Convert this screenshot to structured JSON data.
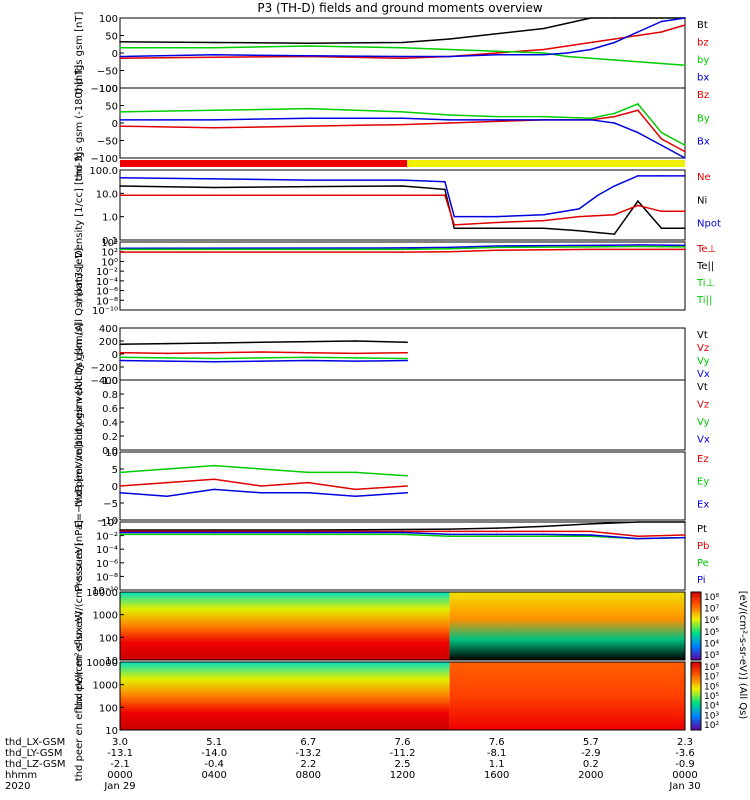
{
  "title": "P3 (TH-D) fields and ground moments overview",
  "colors": {
    "black": "#000000",
    "red": "#e00000",
    "green": "#00cc00",
    "blue": "#0000e0",
    "yellow": "#f0f000",
    "red_bar": "#ee0000"
  },
  "chart_data": [
    {
      "type": "line",
      "ylabel": "thd fgs gsm [nT]",
      "ylim": [
        -100,
        100
      ],
      "yticks": [
        "100",
        "50",
        "0",
        "−50",
        "−100"
      ],
      "legend": [
        {
          "label": "Bt",
          "color": "#000000"
        },
        {
          "label": "bz",
          "color": "#e00000"
        },
        {
          "label": "by",
          "color": "#00cc00"
        },
        {
          "label": "bx",
          "color": "#0000e0"
        }
      ],
      "x_hours": [
        0,
        4,
        8,
        12,
        14,
        16,
        18,
        19,
        20,
        21,
        22,
        23,
        24
      ],
      "series": [
        {
          "name": "Bt",
          "color": "#000000",
          "values": [
            32,
            30,
            28,
            30,
            40,
            55,
            70,
            85,
            100,
            100,
            100,
            100,
            100
          ]
        },
        {
          "name": "bz",
          "color": "#e00000",
          "values": [
            -15,
            -12,
            -10,
            -15,
            -10,
            0,
            10,
            20,
            30,
            40,
            50,
            60,
            80
          ]
        },
        {
          "name": "by",
          "color": "#00cc00",
          "values": [
            15,
            15,
            20,
            15,
            10,
            5,
            0,
            -10,
            -15,
            -20,
            -25,
            -30,
            -35
          ]
        },
        {
          "name": "bx",
          "color": "#0000e0",
          "values": [
            -10,
            -5,
            -8,
            -10,
            -10,
            -5,
            -5,
            0,
            10,
            30,
            60,
            90,
            100
          ]
        }
      ]
    },
    {
      "type": "line",
      "ylabel": "thd fgs gsm (-180) [nT]",
      "ylim": [
        -120,
        100
      ],
      "yticks": [
        "100",
        "50",
        "0",
        "−50",
        "−100"
      ],
      "legend": [
        {
          "label": "Bz",
          "color": "#e00000"
        },
        {
          "label": "By",
          "color": "#00cc00"
        },
        {
          "label": "Bx",
          "color": "#0000e0"
        }
      ],
      "x_hours": [
        0,
        4,
        8,
        12,
        14,
        16,
        18,
        20,
        21,
        22,
        23,
        24
      ],
      "series": [
        {
          "name": "Bz",
          "color": "#e00000",
          "values": [
            -20,
            -25,
            -20,
            -15,
            -10,
            -5,
            0,
            0,
            10,
            30,
            -60,
            -100
          ]
        },
        {
          "name": "By",
          "color": "#00cc00",
          "values": [
            25,
            30,
            35,
            25,
            15,
            10,
            10,
            5,
            20,
            50,
            -40,
            -80
          ]
        },
        {
          "name": "Bx",
          "color": "#0000e0",
          "values": [
            0,
            0,
            5,
            5,
            0,
            0,
            0,
            0,
            -10,
            -40,
            -80,
            -120
          ]
        }
      ]
    },
    {
      "type": "bar",
      "segments": [
        {
          "from_hour": 0,
          "to_hour": 12.2,
          "color": "#ee0000"
        },
        {
          "from_hour": 12.2,
          "to_hour": 24,
          "color": "#f0f000"
        }
      ]
    },
    {
      "type": "line",
      "ylabel": "Density [1/cc] [cm-3]",
      "yscale": "log",
      "ylim": [
        0.05,
        200
      ],
      "yticks": [
        "100.0",
        "10.0",
        "1.0",
        "0.1"
      ],
      "legend": [
        {
          "label": "Ne",
          "color": "#e00000"
        },
        {
          "label": "Ni",
          "color": "#000000"
        },
        {
          "label": "Npot",
          "color": "#0000e0"
        }
      ],
      "x_hours": [
        0,
        4,
        8,
        12,
        13.8,
        14.2,
        16,
        18,
        19.5,
        20.3,
        21,
        22,
        23,
        24
      ],
      "series": [
        {
          "name": "Npot",
          "color": "#0000e0",
          "values": [
            80,
            70,
            60,
            60,
            50,
            0.8,
            0.8,
            1,
            2,
            10,
            30,
            100,
            100,
            100
          ]
        },
        {
          "name": "Ni",
          "color": "#000000",
          "values": [
            30,
            25,
            28,
            30,
            20,
            0.2,
            0.2,
            0.2,
            0.15,
            0.12,
            0.1,
            5,
            0.2,
            0.2
          ]
        },
        {
          "name": "Ne",
          "color": "#e00000",
          "values": [
            10,
            10,
            10,
            10,
            10,
            0.3,
            0.4,
            0.5,
            0.8,
            0.9,
            1,
            3,
            1.5,
            1.5
          ]
        }
      ]
    },
    {
      "type": "line",
      "ylabel": "moat3 [eV]",
      "yscale": "log",
      "ylim": [
        1e-10,
        10000
      ],
      "yticks": [
        "10⁴",
        "10²",
        "10⁰",
        "10⁻²",
        "10⁻⁴",
        "10⁻⁶",
        "10⁻⁸",
        "10⁻¹⁰"
      ],
      "legend": [
        {
          "label": "Te⊥",
          "color": "#e00000"
        },
        {
          "label": "Te||",
          "color": "#000000"
        },
        {
          "label": "Ti⊥",
          "color": "#00cc00"
        },
        {
          "label": "Ti||",
          "color": "#00cc00"
        }
      ],
      "x_hours": [
        0,
        12,
        14,
        16,
        20,
        22,
        24
      ],
      "series": [
        {
          "name": "Ti",
          "color": "#0000e0",
          "values": [
            500,
            600,
            800,
            1500,
            2000,
            2500,
            2000
          ]
        },
        {
          "name": "Ti||",
          "color": "#00cc00",
          "values": [
            300,
            300,
            400,
            800,
            1000,
            1200,
            1000
          ]
        },
        {
          "name": "Te",
          "color": "#e00000",
          "values": [
            80,
            80,
            100,
            200,
            300,
            300,
            300
          ]
        }
      ]
    },
    {
      "type": "line",
      "ylabel": "thd peir velocity gsm (All Qs) [km/s]",
      "ylim": [
        -400,
        400
      ],
      "yticks": [
        "400",
        "200",
        "0",
        "−200",
        "−400"
      ],
      "legend": [
        {
          "label": "Vt",
          "color": "#000000"
        },
        {
          "label": "Vz",
          "color": "#e00000"
        },
        {
          "label": "Vy",
          "color": "#00cc00"
        },
        {
          "label": "Vx",
          "color": "#0000e0"
        }
      ],
      "x_hours": [
        0,
        2,
        4,
        6,
        8,
        10,
        12.2
      ],
      "series": [
        {
          "name": "Vt",
          "color": "#000000",
          "values": [
            150,
            160,
            170,
            180,
            190,
            200,
            180
          ]
        },
        {
          "name": "Vz",
          "color": "#e00000",
          "values": [
            20,
            10,
            20,
            30,
            20,
            10,
            20
          ]
        },
        {
          "name": "Vy",
          "color": "#00cc00",
          "values": [
            -50,
            -60,
            -70,
            -60,
            -50,
            -60,
            -70
          ]
        },
        {
          "name": "Vx",
          "color": "#0000e0",
          "values": [
            -100,
            -110,
            -120,
            -110,
            -100,
            -110,
            -100
          ]
        }
      ]
    },
    {
      "type": "line",
      "ylabel": "thd peer velocity gsm (All Qs) [km/s]",
      "ylim": [
        0,
        1
      ],
      "yticks": [
        "1.0",
        "0.8",
        "0.6",
        "0.4",
        "0.2",
        "0.0"
      ],
      "legend": [
        {
          "label": "Vt",
          "color": "#000000"
        },
        {
          "label": "Vz",
          "color": "#e00000"
        },
        {
          "label": "Vy",
          "color": "#00cc00"
        },
        {
          "label": "Vx",
          "color": "#0000e0"
        }
      ],
      "series": []
    },
    {
      "type": "line",
      "ylabel": "E=−VxB [mV/m]",
      "ylim": [
        -10,
        10
      ],
      "yticks": [
        "10",
        "5",
        "0",
        "−5",
        "−10"
      ],
      "legend": [
        {
          "label": "Ez",
          "color": "#e00000"
        },
        {
          "label": "Ey",
          "color": "#00cc00"
        },
        {
          "label": "Ex",
          "color": "#0000e0"
        }
      ],
      "x_hours": [
        0,
        2,
        4,
        6,
        8,
        10,
        12.2
      ],
      "series": [
        {
          "name": "Ey",
          "color": "#00cc00",
          "values": [
            4,
            5,
            6,
            5,
            4,
            4,
            3
          ]
        },
        {
          "name": "Ez",
          "color": "#e00000",
          "values": [
            0,
            1,
            2,
            0,
            1,
            -1,
            0
          ]
        },
        {
          "name": "Ex",
          "color": "#0000e0",
          "values": [
            -2,
            -3,
            -1,
            -2,
            -2,
            -3,
            -2
          ]
        }
      ]
    },
    {
      "type": "line",
      "ylabel": "Pressure [nPa]",
      "yscale": "log",
      "ylim": [
        1e-10,
        10
      ],
      "yticks": [
        "10⁰",
        "10⁻²",
        "10⁻⁴",
        "10⁻⁶",
        "10⁻⁸",
        "10⁻¹⁰"
      ],
      "legend": [
        {
          "label": "Pt",
          "color": "#000000"
        },
        {
          "label": "Pb",
          "color": "#e00000"
        },
        {
          "label": "Pe",
          "color": "#00cc00"
        },
        {
          "label": "Pi",
          "color": "#0000e0"
        }
      ],
      "x_hours": [
        0,
        4,
        8,
        12,
        14,
        16,
        18,
        20,
        22,
        24
      ],
      "series": [
        {
          "name": "Pt",
          "color": "#000000",
          "values": [
            0.5,
            0.5,
            0.5,
            0.6,
            0.7,
            1,
            2,
            5,
            10,
            10
          ]
        },
        {
          "name": "Pb",
          "color": "#e00000",
          "values": [
            0.3,
            0.3,
            0.3,
            0.3,
            0.3,
            0.3,
            0.3,
            0.3,
            0.05,
            0.08
          ]
        },
        {
          "name": "Pe",
          "color": "#00cc00",
          "values": [
            0.1,
            0.1,
            0.1,
            0.1,
            0.05,
            0.05,
            0.05,
            0.05,
            0.02,
            0.03
          ]
        },
        {
          "name": "Pi",
          "color": "#0000e0",
          "values": [
            0.2,
            0.2,
            0.2,
            0.2,
            0.1,
            0.1,
            0.1,
            0.08,
            0.02,
            0.03
          ]
        }
      ]
    },
    {
      "type": "heatmap",
      "ylabel": "thd peir en eflux eV/(cm²-s-sr-eV)",
      "yscale": "log",
      "ylim": [
        5,
        30000
      ],
      "yticks": [
        "10000",
        "1000",
        "100",
        "10"
      ],
      "colorbar_ticks": [
        "10⁸",
        "10⁷",
        "10⁶",
        "10⁵",
        "10⁴",
        "10³"
      ]
    },
    {
      "type": "heatmap",
      "ylabel": "thd peer en eflux eV/(cm²-s-sr-eV)",
      "yscale": "log",
      "ylim": [
        5,
        30000
      ],
      "yticks": [
        "10000",
        "1000",
        "100",
        "10"
      ],
      "colorbar_ticks": [
        "10⁸",
        "10⁷",
        "10⁶",
        "10⁵",
        "10⁴",
        "10³",
        "10²"
      ]
    }
  ],
  "colorbar_label": "[eV/(cm²-s-sr-eV)] (All Qs)",
  "x_axis": {
    "rows": [
      {
        "label": "thd_LX-GSM",
        "values": [
          "3.0",
          "5.1",
          "6.7",
          "7.6",
          "7.6",
          "5.7",
          "2.3"
        ]
      },
      {
        "label": "thd_LY-GSM",
        "values": [
          "-13.1",
          "-14.0",
          "-13.2",
          "-11.2",
          "-8.1",
          "-2.9",
          "-3.6"
        ]
      },
      {
        "label": "thd_LZ-GSM",
        "values": [
          "-2.1",
          "-0.4",
          "2.2",
          "2.5",
          "1.1",
          "0.2",
          "-0.9"
        ]
      },
      {
        "label": "hhmm",
        "values": [
          "0000",
          "0400",
          "0800",
          "1200",
          "1600",
          "2000",
          "0000"
        ]
      },
      {
        "label": "2020",
        "values": [
          "Jan 29",
          "",
          "",
          "",
          "",
          "",
          "Jan 30"
        ]
      }
    ]
  }
}
